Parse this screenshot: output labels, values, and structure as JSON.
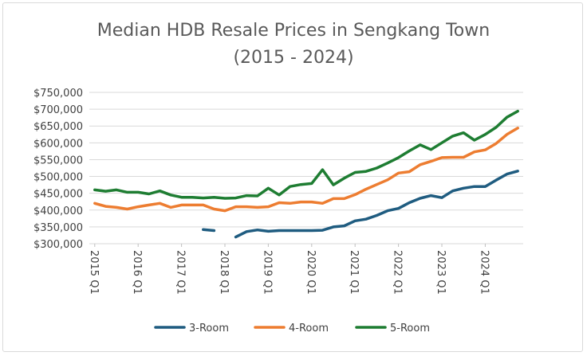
{
  "chart_data": {
    "type": "line",
    "title_line1": "Median HDB Resale Prices in Sengkang Town",
    "title_line2": "(2015 - 2024)",
    "xlabel": "",
    "ylabel": "",
    "ylim": [
      300000,
      750000
    ],
    "y_ticks": [
      "$300,000",
      "$350,000",
      "$400,000",
      "$450,000",
      "$500,000",
      "$550,000",
      "$600,000",
      "$650,000",
      "$700,000",
      "$750,000"
    ],
    "x_tick_labels": [
      "2015 Q1",
      "2016 Q1",
      "2017 Q1",
      "2018 Q1",
      "2019 Q1",
      "2020 Q1",
      "2021 Q1",
      "2022 Q1",
      "2023 Q1",
      "2024 Q1"
    ],
    "x": [
      "2015 Q1",
      "2015 Q2",
      "2015 Q3",
      "2015 Q4",
      "2016 Q1",
      "2016 Q2",
      "2016 Q3",
      "2016 Q4",
      "2017 Q1",
      "2017 Q2",
      "2017 Q3",
      "2017 Q4",
      "2018 Q1",
      "2018 Q2",
      "2018 Q3",
      "2018 Q4",
      "2019 Q1",
      "2019 Q2",
      "2019 Q3",
      "2019 Q4",
      "2020 Q1",
      "2020 Q2",
      "2020 Q3",
      "2020 Q4",
      "2021 Q1",
      "2021 Q2",
      "2021 Q3",
      "2021 Q4",
      "2022 Q1",
      "2022 Q2",
      "2022 Q3",
      "2022 Q4",
      "2023 Q1",
      "2023 Q2",
      "2023 Q3",
      "2023 Q4",
      "2024 Q1",
      "2024 Q2",
      "2024 Q3",
      "2024 Q4"
    ],
    "grid": true,
    "legend_position": "bottom",
    "series": [
      {
        "name": "3-Room",
        "color": "#1f5c80",
        "values": [
          null,
          null,
          null,
          null,
          null,
          null,
          null,
          null,
          null,
          null,
          342000,
          339000,
          null,
          320000,
          336000,
          341000,
          337000,
          339000,
          339000,
          339000,
          339000,
          340000,
          350000,
          353000,
          368000,
          373000,
          384000,
          398000,
          405000,
          422000,
          435000,
          443000,
          437000,
          457000,
          465000,
          470000,
          470000,
          489000,
          507000,
          516000
        ]
      },
      {
        "name": "4-Room",
        "color": "#ed7d31",
        "values": [
          420000,
          411000,
          408000,
          403000,
          410000,
          415000,
          420000,
          408000,
          415000,
          415000,
          415000,
          403000,
          398000,
          410000,
          410000,
          408000,
          410000,
          422000,
          420000,
          424000,
          424000,
          420000,
          434000,
          434000,
          446000,
          462000,
          476000,
          490000,
          510000,
          514000,
          535000,
          545000,
          556000,
          557000,
          557000,
          573000,
          579000,
          598000,
          625000,
          644000
        ]
      },
      {
        "name": "5-Room",
        "color": "#1e7d32",
        "values": [
          460000,
          456000,
          460000,
          453000,
          453000,
          448000,
          457000,
          445000,
          438000,
          438000,
          436000,
          438000,
          435000,
          436000,
          443000,
          442000,
          465000,
          445000,
          470000,
          476000,
          479000,
          520000,
          475000,
          495000,
          512000,
          515000,
          525000,
          540000,
          556000,
          576000,
          594000,
          580000,
          600000,
          620000,
          630000,
          608000,
          625000,
          646000,
          676000,
          694000
        ]
      }
    ]
  }
}
